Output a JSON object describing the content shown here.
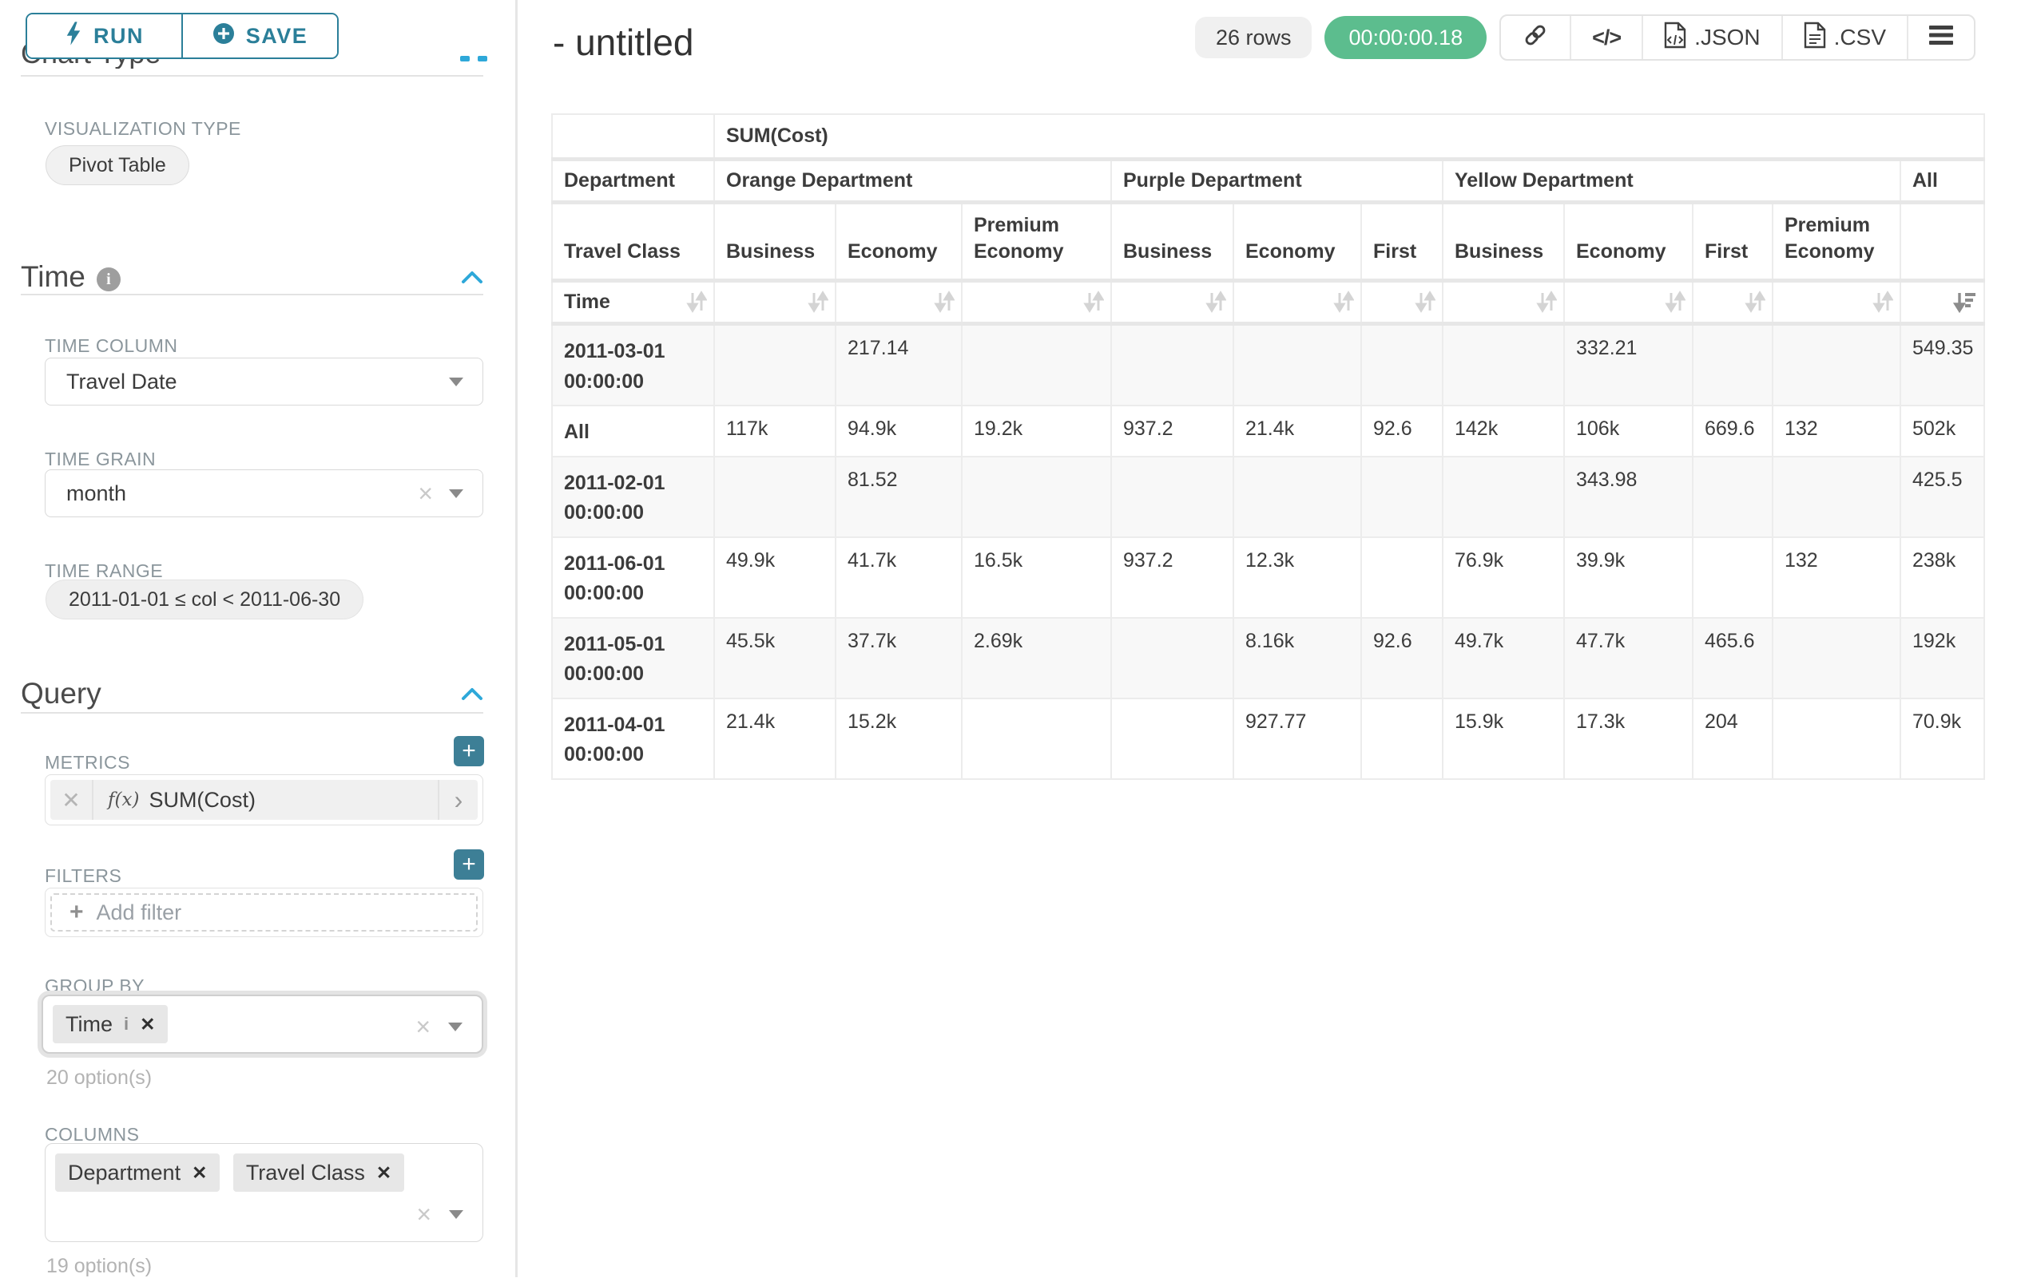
{
  "colors": {
    "accent": "#2b7f99",
    "accent_bright": "#2ea8d9",
    "add_button": "#3d7f96",
    "timer_green": "#5cbd8e"
  },
  "sidebar": {
    "run_label": "RUN",
    "save_label": "SAVE",
    "chart_type_heading": "Chart Type",
    "visualization_type_label": "VISUALIZATION TYPE",
    "visualization_type_value": "Pivot Table",
    "time_section": {
      "title": "Time",
      "time_column_label": "TIME COLUMN",
      "time_column_value": "Travel Date",
      "time_grain_label": "TIME GRAIN",
      "time_grain_value": "month",
      "time_range_label": "TIME RANGE",
      "time_range_value": "2011-01-01 ≤ col < 2011-06-30"
    },
    "query_section": {
      "title": "Query",
      "metrics_label": "METRICS",
      "metric_fn_prefix": "f(x)",
      "metric_value": "SUM(Cost)",
      "filters_label": "FILTERS",
      "add_filter_placeholder": "Add filter",
      "group_by_label": "GROUP BY",
      "group_by_tags": [
        "Time"
      ],
      "group_by_options_hint": "20 option(s)",
      "columns_label": "COLUMNS",
      "columns_tags": [
        "Department",
        "Travel Class"
      ],
      "columns_options_hint": "19 option(s)"
    }
  },
  "header": {
    "title": "- untitled",
    "rows_badge": "26 rows",
    "timer": "00:00:00.18",
    "json_label": ".JSON",
    "csv_label": ".CSV"
  },
  "chart_data": {
    "type": "table",
    "metric": "SUM(Cost)",
    "corner_row2": "Department",
    "corner_row3": "Travel Class",
    "corner_row4": "Time",
    "column_groups": [
      {
        "label": "Orange Department",
        "children": [
          "Business",
          "Economy",
          "Premium Economy"
        ]
      },
      {
        "label": "Purple Department",
        "children": [
          "Business",
          "Economy",
          "First"
        ]
      },
      {
        "label": "Yellow Department",
        "children": [
          "Business",
          "Economy",
          "First",
          "Premium Economy"
        ]
      },
      {
        "label": "All",
        "children": [
          ""
        ]
      }
    ],
    "sort": {
      "active_column_index": 10,
      "direction": "desc"
    },
    "rows": [
      {
        "label": "2011-03-01 00:00:00",
        "values": [
          "",
          "217.14",
          "",
          "",
          "",
          "",
          "",
          "332.21",
          "",
          "",
          "549.35"
        ]
      },
      {
        "label": "All",
        "values": [
          "117k",
          "94.9k",
          "19.2k",
          "937.2",
          "21.4k",
          "92.6",
          "142k",
          "106k",
          "669.6",
          "132",
          "502k"
        ]
      },
      {
        "label": "2011-02-01 00:00:00",
        "values": [
          "",
          "81.52",
          "",
          "",
          "",
          "",
          "",
          "343.98",
          "",
          "",
          "425.5"
        ]
      },
      {
        "label": "2011-06-01 00:00:00",
        "values": [
          "49.9k",
          "41.7k",
          "16.5k",
          "937.2",
          "12.3k",
          "",
          "76.9k",
          "39.9k",
          "",
          "132",
          "238k"
        ]
      },
      {
        "label": "2011-05-01 00:00:00",
        "values": [
          "45.5k",
          "37.7k",
          "2.69k",
          "",
          "8.16k",
          "92.6",
          "49.7k",
          "47.7k",
          "465.6",
          "",
          "192k"
        ]
      },
      {
        "label": "2011-04-01 00:00:00",
        "values": [
          "21.4k",
          "15.2k",
          "",
          "",
          "927.77",
          "",
          "15.9k",
          "17.3k",
          "204",
          "",
          "70.9k"
        ]
      }
    ]
  }
}
